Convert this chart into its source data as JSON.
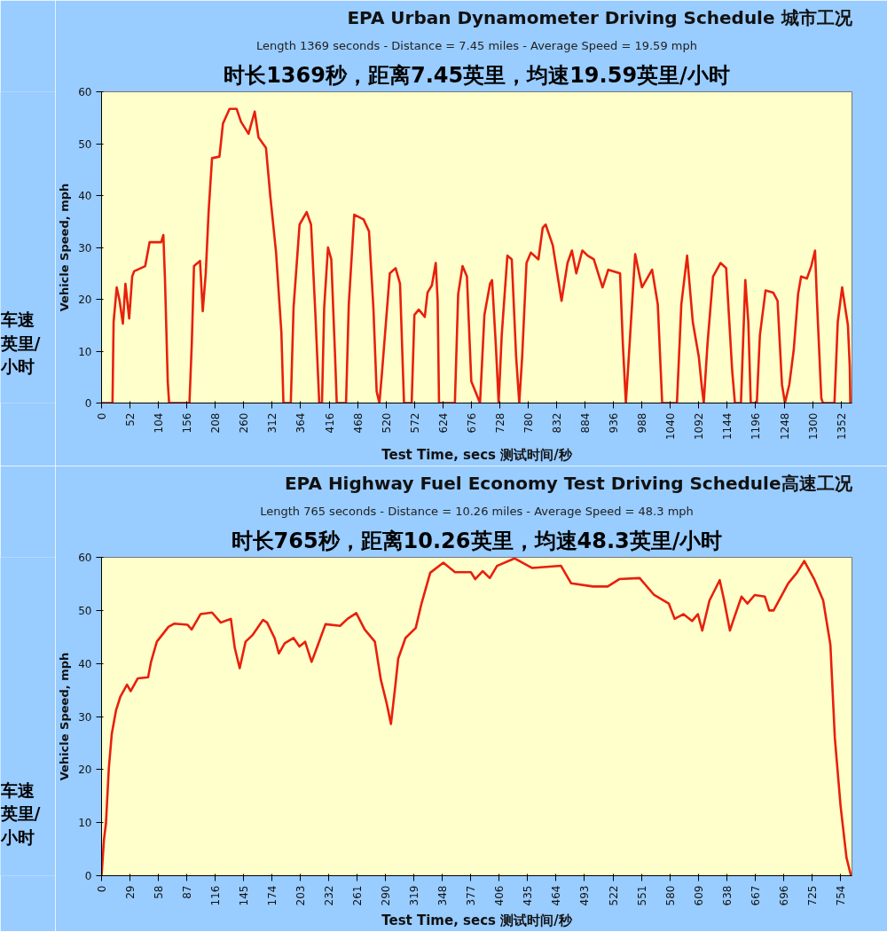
{
  "chart_data": [
    {
      "type": "line",
      "title": "EPA Urban Dynamometer Driving Schedule 城市工况",
      "subtitle": "Length 1369 seconds - Distance = 7.45 miles - Average Speed = 19.59 mph",
      "xlabel": "Test Time, secs 测试时间/秒",
      "ylabel": "Vehicle Speed, mph",
      "annotations": [
        "时长1369秒，距离7.45英里，均速19.59英里/小时",
        "车速英里/小时"
      ],
      "xlim": [
        0,
        1372
      ],
      "ylim": [
        0,
        60
      ],
      "yticks": [
        0,
        10,
        20,
        30,
        40,
        50,
        60
      ],
      "xticks": [
        0,
        52,
        104,
        156,
        208,
        260,
        312,
        364,
        416,
        468,
        520,
        572,
        624,
        676,
        728,
        780,
        832,
        884,
        936,
        988,
        1040,
        1092,
        1144,
        1196,
        1248,
        1300,
        1352
      ],
      "x": [
        0,
        20,
        22,
        27.7,
        33,
        39,
        43.6,
        50.5,
        56,
        59.6,
        79.8,
        87.8,
        109,
        113,
        116,
        121,
        123.5,
        160.7,
        165,
        169,
        180,
        185,
        190.5,
        195.8,
        202,
        215.5,
        222,
        234,
        247,
        255,
        268.7,
        280,
        287,
        300.6,
        308.6,
        319,
        328.8,
        332.5,
        346,
        351,
        362,
        375,
        383,
        391,
        398,
        403,
        407,
        414,
        420,
        427,
        430,
        447,
        452,
        462,
        479,
        489,
        497,
        503,
        508,
        513,
        527,
        537.6,
        545.7,
        551,
        553,
        567,
        572,
        580,
        591,
        596,
        604,
        611,
        614.5,
        617,
        646,
        652,
        660,
        668,
        676,
        692,
        700,
        710.3,
        714,
        721,
        726,
        731.6,
        742,
        750,
        758,
        763.7,
        769,
        777,
        785,
        798.7,
        806.6,
        812,
        825,
        841,
        852,
        860,
        868,
        879,
        889,
        900,
        916,
        926.5,
        948,
        953,
        958.6,
        964,
        975.6,
        988,
        1006.6,
        1017,
        1025,
        1052,
        1060,
        1070.6,
        1081,
        1092,
        1097,
        1101,
        1108,
        1118,
        1131.6,
        1142,
        1153,
        1158,
        1169,
        1177,
        1182.5,
        1187,
        1198,
        1203.6,
        1214,
        1228,
        1236,
        1244,
        1249.5,
        1257.5,
        1265.6,
        1273.5,
        1279,
        1289.6,
        1297.6,
        1304.5,
        1308,
        1316,
        1319,
        1340,
        1346,
        1354,
        1364.6,
        1368,
        1369
      ],
      "series": [
        {
          "color": "#e8200c",
          "values": [
            0,
            0,
            15.6,
            22.3,
            19.7,
            15.3,
            23,
            16.3,
            24.4,
            25.4,
            26.4,
            31,
            31,
            32.4,
            23.7,
            4.2,
            0,
            0,
            11.6,
            26.4,
            27.4,
            17.7,
            25,
            37,
            47.2,
            47.5,
            53.9,
            56.7,
            56.7,
            54.2,
            51.9,
            56.2,
            51.2,
            49.2,
            39.8,
            29.1,
            13.6,
            0,
            0,
            18.3,
            34.4,
            36.8,
            34.4,
            17,
            0,
            0,
            18.3,
            30,
            27.7,
            8.9,
            0,
            0,
            19,
            36.3,
            35.4,
            33.1,
            18.3,
            2.2,
            0,
            6.2,
            25,
            26,
            23,
            6.2,
            0,
            0,
            17,
            18,
            16.6,
            21.3,
            22.7,
            27,
            19.7,
            0,
            0,
            21,
            26.4,
            24.4,
            4.2,
            0,
            17,
            23,
            23.7,
            10.9,
            0,
            13,
            28.4,
            27.7,
            8.9,
            0,
            8.9,
            27,
            29,
            27.7,
            33.8,
            34.4,
            30.4,
            19.7,
            27,
            29.4,
            25,
            29.4,
            28.4,
            27.7,
            22.3,
            25.7,
            25,
            11.6,
            0,
            8.9,
            28.7,
            22.3,
            25.7,
            19,
            0,
            0,
            19,
            28.4,
            15.6,
            8.9,
            3.6,
            0,
            11.6,
            24.4,
            27,
            26,
            6.2,
            0,
            0,
            23.7,
            15.6,
            0,
            0,
            13,
            21.7,
            21.3,
            19.7,
            3.6,
            0,
            3.6,
            10.3,
            21,
            24.4,
            24,
            26.4,
            29.4,
            19.7,
            0.9,
            0,
            0,
            15.6,
            22.3,
            15,
            6.9,
            0
          ]
        }
      ]
    },
    {
      "type": "line",
      "title": "EPA Highway Fuel Economy Test Driving Schedule高速工况",
      "subtitle": "Length 765 seconds - Distance = 10.26 miles - Average Speed = 48.3 mph",
      "xlabel": "Test Time, secs 测试时间/秒",
      "ylabel": "Vehicle Speed, mph",
      "annotations": [
        "时长765秒，距离10.26英里，均速48.3英里/小时",
        "车速英里/小时"
      ],
      "xlim": [
        0,
        766
      ],
      "ylim": [
        0,
        60
      ],
      "yticks": [
        0,
        10,
        20,
        30,
        40,
        50,
        60
      ],
      "xticks": [
        0,
        29,
        58,
        87,
        116,
        145,
        174,
        203,
        232,
        261,
        290,
        319,
        348,
        377,
        406,
        435,
        464,
        493,
        522,
        551,
        580,
        609,
        638,
        667,
        696,
        725,
        754
      ],
      "x": [
        0,
        2.4,
        4.5,
        7.4,
        10.4,
        14.8,
        19.3,
        26,
        29.7,
        37,
        47.5,
        50.5,
        56.4,
        68.3,
        74,
        87.6,
        92,
        101,
        112.8,
        121.7,
        132,
        136,
        141,
        147,
        154.4,
        164.8,
        169,
        176.6,
        181,
        187,
        196,
        202,
        207.8,
        214.4,
        219.7,
        228.6,
        243.5,
        251,
        260,
        268.6,
        279,
        285,
        291,
        295.4,
        299.8,
        302.8,
        310.2,
        320.7,
        326.6,
        335.5,
        348.9,
        360.8,
        377,
        381.4,
        389,
        396.3,
        403.7,
        421.5,
        439.3,
        469,
        479.4,
        501.7,
        516.6,
        528.5,
        549.3,
        564.1,
        579,
        585,
        593.9,
        602.8,
        608.7,
        613.2,
        620.6,
        631,
        635.5,
        641.4,
        645.9,
        653.3,
        659.3,
        666.7,
        677.1,
        681.6,
        686,
        700.9,
        709.8,
        717.3,
        727.7,
        736.6,
        744,
        748.5,
        754.4,
        760.4,
        765
      ],
      "series": [
        {
          "color": "#e8200c",
          "values": [
            0,
            6.7,
            9.9,
            20.2,
            26.7,
            31.2,
            33.8,
            36,
            34.8,
            37.2,
            37.4,
            40.3,
            44.1,
            46.9,
            47.5,
            47.3,
            46.4,
            49.3,
            49.6,
            47.7,
            48.4,
            42.9,
            39.1,
            44.1,
            45.4,
            48.2,
            47.7,
            44.8,
            41.9,
            43.8,
            44.8,
            43.2,
            44.1,
            40.3,
            42.9,
            47.4,
            47.1,
            48.4,
            49.5,
            46.4,
            44.1,
            37,
            32.5,
            28.6,
            35.7,
            40.9,
            44.8,
            46.7,
            51.3,
            57.1,
            59,
            57.2,
            57.2,
            55.9,
            57.4,
            56.1,
            58.4,
            59.8,
            58,
            58.4,
            55.1,
            54.5,
            54.5,
            55.9,
            56.1,
            52.9,
            51.3,
            48.4,
            49.3,
            48,
            49.3,
            46.2,
            51.9,
            55.7,
            51.9,
            46.2,
            48.7,
            52.6,
            51.3,
            52.9,
            52.6,
            50,
            50,
            55.1,
            57.1,
            59.3,
            55.8,
            51.9,
            43.5,
            26,
            13.1,
            3.4,
            0
          ]
        }
      ]
    }
  ]
}
